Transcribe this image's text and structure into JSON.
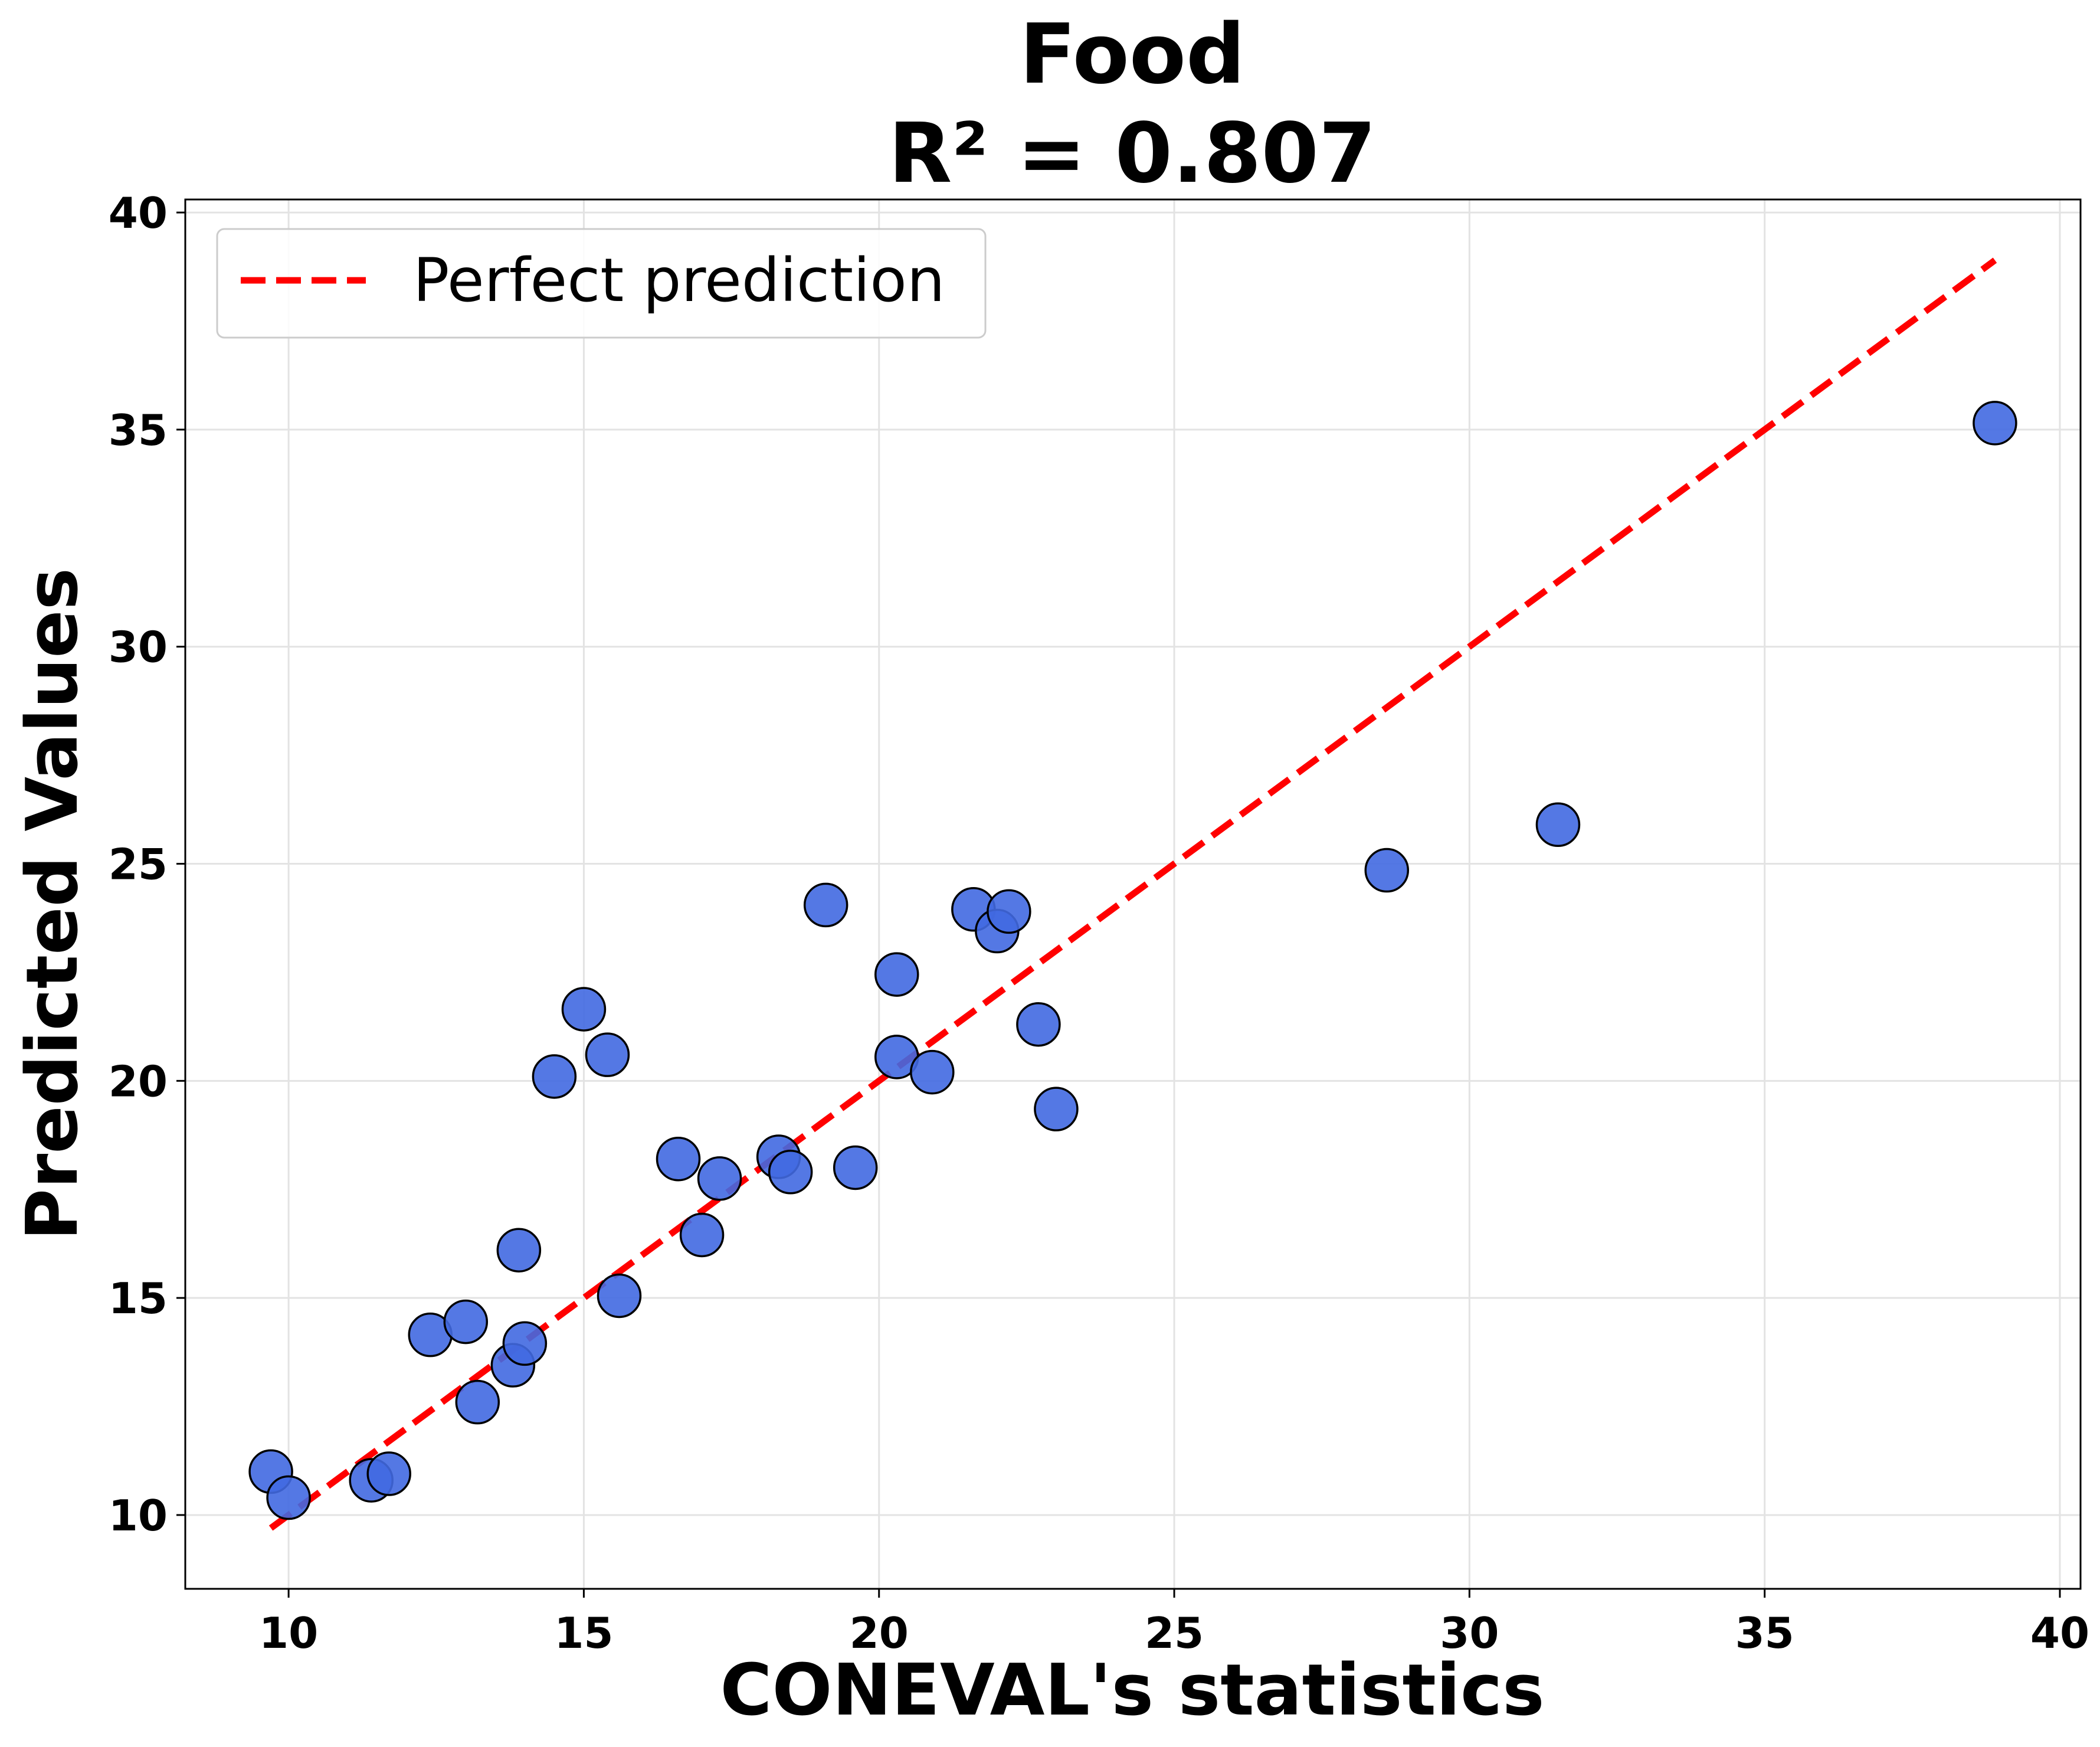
{
  "chart_data": {
    "type": "scatter",
    "title": "Food",
    "subtitle": "R² = 0.807",
    "xlabel": "CONEVAL's statistics",
    "ylabel": "Predicted Values",
    "xlim": [
      8.25,
      40.35
    ],
    "ylim": [
      8.3,
      40.3
    ],
    "xticks": [
      10,
      15,
      20,
      25,
      30,
      35,
      40
    ],
    "yticks": [
      10,
      15,
      20,
      25,
      30,
      35,
      40
    ],
    "grid": true,
    "legend": {
      "position": "top-left",
      "entries": [
        "Perfect prediction"
      ]
    },
    "reference_line": {
      "name": "Perfect prediction",
      "x": [
        9.7,
        38.9
      ],
      "y": [
        9.7,
        38.9
      ],
      "color": "#ff0000",
      "style": "dashed"
    },
    "series": [
      {
        "marker_color": "#4169e1",
        "points": [
          {
            "x": 9.7,
            "y": 11.0
          },
          {
            "x": 10.0,
            "y": 10.4
          },
          {
            "x": 11.4,
            "y": 10.8
          },
          {
            "x": 11.7,
            "y": 10.95
          },
          {
            "x": 12.4,
            "y": 14.15
          },
          {
            "x": 13.0,
            "y": 14.45
          },
          {
            "x": 13.2,
            "y": 12.6
          },
          {
            "x": 13.8,
            "y": 13.45
          },
          {
            "x": 13.9,
            "y": 16.1
          },
          {
            "x": 14.0,
            "y": 13.95
          },
          {
            "x": 14.5,
            "y": 20.1
          },
          {
            "x": 15.0,
            "y": 21.65
          },
          {
            "x": 15.4,
            "y": 20.6
          },
          {
            "x": 15.6,
            "y": 15.05
          },
          {
            "x": 16.6,
            "y": 18.2
          },
          {
            "x": 17.0,
            "y": 16.45
          },
          {
            "x": 17.3,
            "y": 17.75
          },
          {
            "x": 18.3,
            "y": 18.25
          },
          {
            "x": 18.5,
            "y": 17.9
          },
          {
            "x": 19.1,
            "y": 24.05
          },
          {
            "x": 19.6,
            "y": 18.0
          },
          {
            "x": 20.3,
            "y": 22.45
          },
          {
            "x": 20.3,
            "y": 20.55
          },
          {
            "x": 20.9,
            "y": 20.2
          },
          {
            "x": 21.6,
            "y": 23.95
          },
          {
            "x": 22.0,
            "y": 23.45
          },
          {
            "x": 22.2,
            "y": 23.9
          },
          {
            "x": 22.7,
            "y": 21.3
          },
          {
            "x": 23.0,
            "y": 19.35
          },
          {
            "x": 28.6,
            "y": 24.85
          },
          {
            "x": 31.5,
            "y": 25.9
          },
          {
            "x": 38.9,
            "y": 35.15
          }
        ]
      }
    ]
  }
}
